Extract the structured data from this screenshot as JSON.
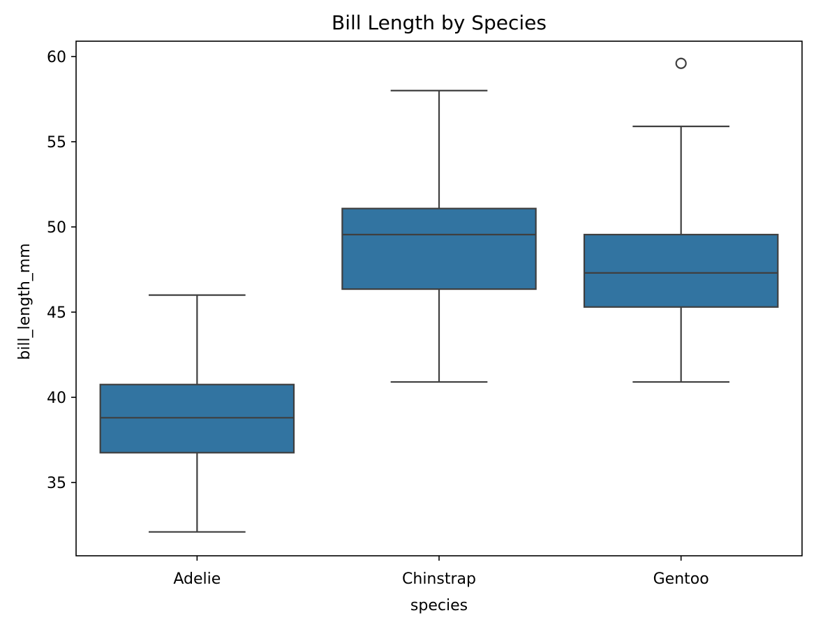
{
  "chart_data": {
    "type": "box",
    "title": "Bill Length by Species",
    "xlabel": "species",
    "ylabel": "bill_length_mm",
    "ylim": [
      30.7,
      60.9
    ],
    "yticks": [
      35,
      40,
      45,
      50,
      55,
      60
    ],
    "ytick_labels": [
      "35",
      "40",
      "45",
      "50",
      "55",
      "60"
    ],
    "categories": [
      "Adelie",
      "Chinstrap",
      "Gentoo"
    ],
    "box_color": "#3274a1",
    "line_color": "#3f3f3f",
    "boxes": [
      {
        "category": "Adelie",
        "whisker_low": 32.1,
        "q1": 36.75,
        "median": 38.8,
        "q3": 40.75,
        "whisker_high": 46.0,
        "outliers": []
      },
      {
        "category": "Chinstrap",
        "whisker_low": 40.9,
        "q1": 46.35,
        "median": 49.55,
        "q3": 51.08,
        "whisker_high": 58.0,
        "outliers": []
      },
      {
        "category": "Gentoo",
        "whisker_low": 40.9,
        "q1": 45.3,
        "median": 47.3,
        "q3": 49.55,
        "whisker_high": 55.9,
        "outliers": [
          59.6
        ]
      }
    ]
  }
}
